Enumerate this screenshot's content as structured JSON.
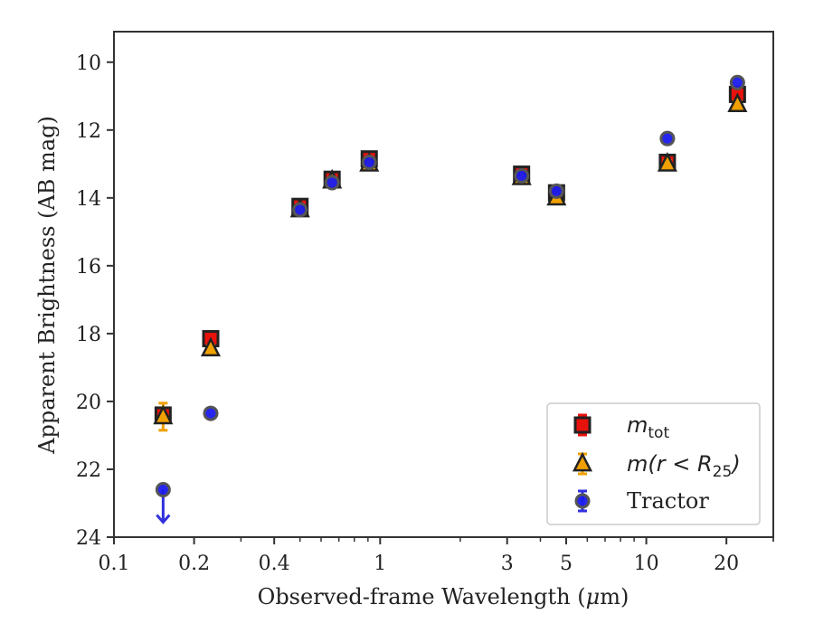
{
  "chart_data": {
    "type": "scatter",
    "xlabel_parts": [
      "Observed-frame Wavelength (",
      "μ",
      "m)"
    ],
    "ylabel": "Apparent Brightness (AB mag)",
    "xscale": "log",
    "xlim": [
      0.1,
      30
    ],
    "ylim": [
      24,
      9.1
    ],
    "y_inverted": true,
    "x_ticks": [
      {
        "value": 0.1,
        "label": "0.1"
      },
      {
        "value": 0.2,
        "label": "0.2"
      },
      {
        "value": 0.4,
        "label": "0.4"
      },
      {
        "value": 1,
        "label": "1"
      },
      {
        "value": 3,
        "label": "3"
      },
      {
        "value": 5,
        "label": "5"
      },
      {
        "value": 10,
        "label": "10"
      },
      {
        "value": 20,
        "label": "20"
      }
    ],
    "y_ticks": [
      10,
      12,
      14,
      16,
      18,
      20,
      22,
      24
    ],
    "grid": false,
    "legend_position": "lower-right",
    "series": [
      {
        "key": "mtot",
        "legend": {
          "base": "m",
          "sub": "tot",
          "rest": ""
        },
        "marker": "square",
        "color": "#e8120c",
        "ecolor": "#e8120c",
        "points": [
          {
            "x": 0.153,
            "y": 20.4,
            "err": 0.15
          },
          {
            "x": 0.231,
            "y": 18.15,
            "err": 0.15
          },
          {
            "x": 0.5,
            "y": 14.25,
            "err": 0.15
          },
          {
            "x": 0.66,
            "y": 13.45,
            "err": 0.1
          },
          {
            "x": 0.91,
            "y": 12.85,
            "err": 0.1
          },
          {
            "x": 3.4,
            "y": 13.3,
            "err": 0.1
          },
          {
            "x": 4.6,
            "y": 13.85,
            "err": 0.1
          },
          {
            "x": 12.0,
            "y": 12.95,
            "err": 0.1
          },
          {
            "x": 22.0,
            "y": 10.95,
            "err": 0.1
          }
        ]
      },
      {
        "key": "mr25",
        "legend": {
          "base": "m",
          "sub": "",
          "rest": "(r < R",
          "rest_sub": "25",
          "close": ")"
        },
        "marker": "triangle",
        "color": "#f0a000",
        "ecolor": "#f0a000",
        "points": [
          {
            "x": 0.153,
            "y": 20.45,
            "err": 0.4
          },
          {
            "x": 0.231,
            "y": 18.45,
            "err": 0.1
          },
          {
            "x": 0.5,
            "y": 14.35,
            "err": 0.1
          },
          {
            "x": 0.66,
            "y": 13.5,
            "err": 0.1
          },
          {
            "x": 0.91,
            "y": 13.0,
            "err": 0.1
          },
          {
            "x": 3.4,
            "y": 13.4,
            "err": 0.1
          },
          {
            "x": 4.6,
            "y": 14.0,
            "err": 0.1
          },
          {
            "x": 12.0,
            "y": 13.0,
            "err": 0.1
          },
          {
            "x": 22.0,
            "y": 11.25,
            "err": 0.1
          }
        ]
      },
      {
        "key": "tractor",
        "legend": {
          "base": "Tractor"
        },
        "marker": "circle",
        "color": "#1a1aee",
        "ecolor": "#3030e0",
        "points": [
          {
            "x": 0.153,
            "y": 22.6,
            "err": 0,
            "upper_limit": true
          },
          {
            "x": 0.231,
            "y": 20.35,
            "err": 0
          },
          {
            "x": 0.5,
            "y": 14.35,
            "err": 0
          },
          {
            "x": 0.66,
            "y": 13.55,
            "err": 0
          },
          {
            "x": 0.91,
            "y": 12.95,
            "err": 0
          },
          {
            "x": 3.4,
            "y": 13.35,
            "err": 0
          },
          {
            "x": 4.6,
            "y": 13.8,
            "err": 0
          },
          {
            "x": 12.0,
            "y": 12.25,
            "err": 0
          },
          {
            "x": 22.0,
            "y": 10.6,
            "err": 0
          }
        ]
      }
    ]
  }
}
